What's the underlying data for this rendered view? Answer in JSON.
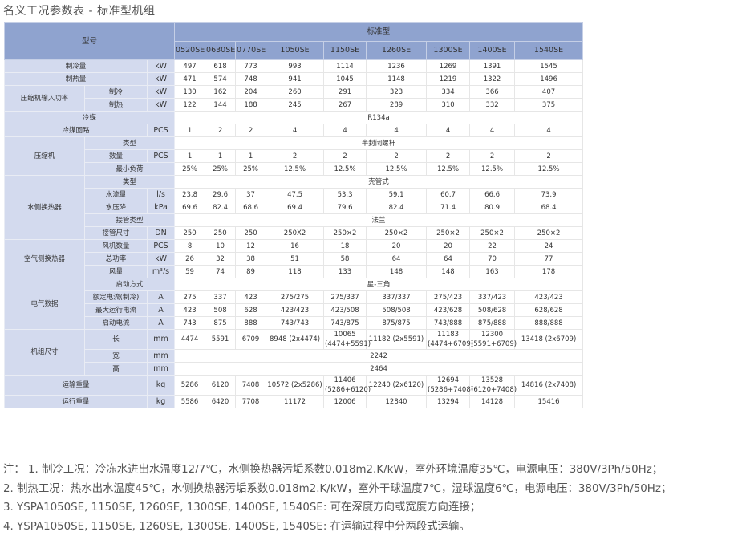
{
  "title": "名义工况参数表 - 标准型机组",
  "header": {
    "model_label": "型号",
    "series_label": "标准型",
    "models": [
      "0520SE",
      "0630SE",
      "0770SE",
      "1050SE",
      "1150SE",
      "1260SE",
      "1300SE",
      "1400SE",
      "1540SE"
    ]
  },
  "rows": [
    {
      "label": "制冷量",
      "unit": "kW",
      "values": [
        "497",
        "618",
        "773",
        "993",
        "1114",
        "1236",
        "1269",
        "1391",
        "1545"
      ]
    },
    {
      "label": "制热量",
      "unit": "kW",
      "values": [
        "471",
        "574",
        "748",
        "941",
        "1045",
        "1148",
        "1219",
        "1322",
        "1496"
      ]
    },
    {
      "group": "压缩机输入功率",
      "sub": "制冷",
      "unit": "kW",
      "values": [
        "130",
        "162",
        "204",
        "260",
        "291",
        "323",
        "334",
        "366",
        "407"
      ]
    },
    {
      "group": "压缩机输入功率",
      "sub": "制热",
      "unit": "kW",
      "values": [
        "122",
        "144",
        "188",
        "245",
        "267",
        "289",
        "310",
        "332",
        "375"
      ]
    },
    {
      "label": "冷媒",
      "value": "R134a"
    },
    {
      "label": "冷媒回路",
      "unit": "PCS",
      "values": [
        "1",
        "2",
        "2",
        "4",
        "4",
        "4",
        "4",
        "4",
        "4"
      ]
    },
    {
      "group": "压缩机",
      "sub": "类型",
      "value": "半封闭螺杆"
    },
    {
      "group": "压缩机",
      "sub": "数量",
      "unit": "PCS",
      "values": [
        "1",
        "1",
        "1",
        "2",
        "2",
        "2",
        "2",
        "2",
        "2"
      ]
    },
    {
      "group": "压缩机",
      "sub": "最小负荷",
      "values": [
        "25%",
        "25%",
        "25%",
        "12.5%",
        "12.5%",
        "12.5%",
        "12.5%",
        "12.5%",
        "12.5%"
      ]
    },
    {
      "group": "水侧换热器",
      "sub": "类型",
      "value": "壳管式"
    },
    {
      "group": "水侧换热器",
      "sub": "水流量",
      "unit": "l/s",
      "values": [
        "23.8",
        "29.6",
        "37",
        "47.5",
        "53.3",
        "59.1",
        "60.7",
        "66.6",
        "73.9"
      ]
    },
    {
      "group": "水侧换热器",
      "sub": "水压降",
      "unit": "kPa",
      "values": [
        "69.6",
        "82.4",
        "68.6",
        "69.4",
        "79.6",
        "82.4",
        "71.4",
        "80.9",
        "68.4"
      ]
    },
    {
      "group": "水侧换热器",
      "sub": "接管类型",
      "value": "法兰"
    },
    {
      "group": "水侧换热器",
      "sub": "接管尺寸",
      "unit": "DN",
      "values": [
        "250",
        "250",
        "250",
        "250X2",
        "250×2",
        "250×2",
        "250×2",
        "250×2",
        "250×2"
      ]
    },
    {
      "group": "空气侧换热器",
      "sub": "风机数量",
      "unit": "PCS",
      "values": [
        "8",
        "10",
        "12",
        "16",
        "18",
        "20",
        "20",
        "22",
        "24"
      ]
    },
    {
      "group": "空气侧换热器",
      "sub": "总功率",
      "unit": "kW",
      "values": [
        "26",
        "32",
        "38",
        "51",
        "58",
        "64",
        "64",
        "70",
        "77"
      ]
    },
    {
      "group": "空气侧换热器",
      "sub": "风量",
      "unit": "m³/s",
      "values": [
        "59",
        "74",
        "89",
        "118",
        "133",
        "148",
        "148",
        "163",
        "178"
      ]
    },
    {
      "group": "电气数据",
      "sub": "启动方式",
      "value": "星-三角"
    },
    {
      "group": "电气数据",
      "sub": "额定电流(制冷)",
      "unit": "A",
      "values": [
        "275",
        "337",
        "423",
        "275/275",
        "275/337",
        "337/337",
        "275/423",
        "337/423",
        "423/423"
      ]
    },
    {
      "group": "电气数据",
      "sub": "最大运行电流",
      "unit": "A",
      "values": [
        "423",
        "508",
        "628",
        "423/423",
        "423/508",
        "508/508",
        "423/628",
        "508/628",
        "628/628"
      ]
    },
    {
      "group": "电气数据",
      "sub": "启动电流",
      "unit": "A",
      "values": [
        "743",
        "875",
        "888",
        "743/743",
        "743/875",
        "875/875",
        "743/888",
        "875/888",
        "888/888"
      ]
    },
    {
      "group": "机组尺寸",
      "sub": "长",
      "unit": "mm",
      "values": [
        "4474",
        "5591",
        "6709",
        "8948 (2x4474)",
        "10065 (4474+5591)",
        "11182 (2x5591)",
        "11183 (4474+6709)",
        "12300 (5591+6709)",
        "13418 (2x6709)"
      ]
    },
    {
      "group": "机组尺寸",
      "sub": "宽",
      "unit": "mm",
      "value": "2242"
    },
    {
      "group": "机组尺寸",
      "sub": "高",
      "unit": "mm",
      "value": "2464"
    },
    {
      "label": "运输重量",
      "unit": "kg",
      "values": [
        "5286",
        "6120",
        "7408",
        "10572 (2x5286)",
        "11406 (5286+6120)",
        "12240 (2x6120)",
        "12694 (5286+7408)",
        "13528 (6120+7408)",
        "14816 (2x7408)"
      ]
    },
    {
      "label": "运行重量",
      "unit": "kg",
      "values": [
        "5586",
        "6420",
        "7708",
        "11172",
        "12006",
        "12840",
        "13294",
        "14128",
        "15416"
      ]
    }
  ],
  "notes": [
    "注：  1. 制冷工况：冷冻水进出水温度12/7℃，水侧换热器污垢系数0.018m2.K/kW，室外环境温度35℃，电源电压：380V/3Ph/50Hz；",
    "2.  制热工况：热水出水温度45℃，水侧换热器污垢系数0.018m2.K/kW，室外干球温度7℃，湿球温度6℃，电源电压：380V/3Ph/50Hz；",
    "3. YSPA1050SE, 1150SE, 1260SE, 1300SE, 1400SE, 1540SE: 可在深度方向或宽度方向连接；",
    "4. YSPA1050SE, 1150SE, 1260SE, 1300SE, 1400SE, 1540SE: 在运输过程中分两段式运输。"
  ]
}
